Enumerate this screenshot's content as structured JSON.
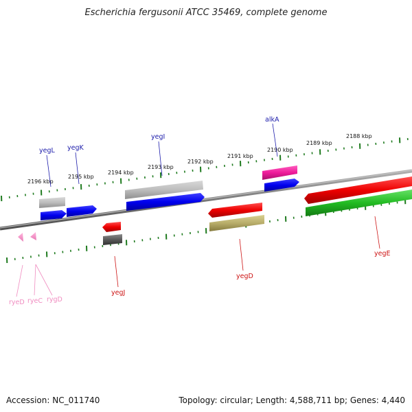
{
  "title": "Escherichia fergusonii ATCC 35469, complete genome",
  "footer": {
    "accession": "Accession: NC_011740",
    "stats": "Topology: circular; Length: 4,588,711 bp; Genes: 4,440"
  },
  "colors": {
    "forward_label": "#1a1aaa",
    "reverse_label": "#cc1111",
    "rna_label": "#f08cc0",
    "scale_ticks": "#1e7a1e",
    "backbone": "#7a7a7a"
  },
  "scale": {
    "labels": [
      "2196 kbp",
      "2195 kbp",
      "2194 kbp",
      "2193 kbp",
      "2192 kbp",
      "2191 kbp",
      "2190 kbp",
      "2189 kbp",
      "2188 kbp"
    ]
  },
  "genes": {
    "forward": [
      {
        "name": "yegL",
        "color": "gray"
      },
      {
        "name": "yegK",
        "color": "blue"
      },
      {
        "name": "yegI",
        "color": "gray/blue"
      },
      {
        "name": "alkA",
        "color": "magenta/blue"
      }
    ],
    "reverse": [
      {
        "name": "yegJ",
        "color": "red/dark-gray"
      },
      {
        "name": "yegD",
        "color": "red/olive"
      },
      {
        "name": "yegE",
        "color": "red/green"
      }
    ],
    "rna": [
      {
        "name": "ryeD",
        "color": "pink"
      },
      {
        "name": "ryeC",
        "color": "pink"
      },
      {
        "name": "rygD",
        "color": "pink"
      }
    ]
  }
}
